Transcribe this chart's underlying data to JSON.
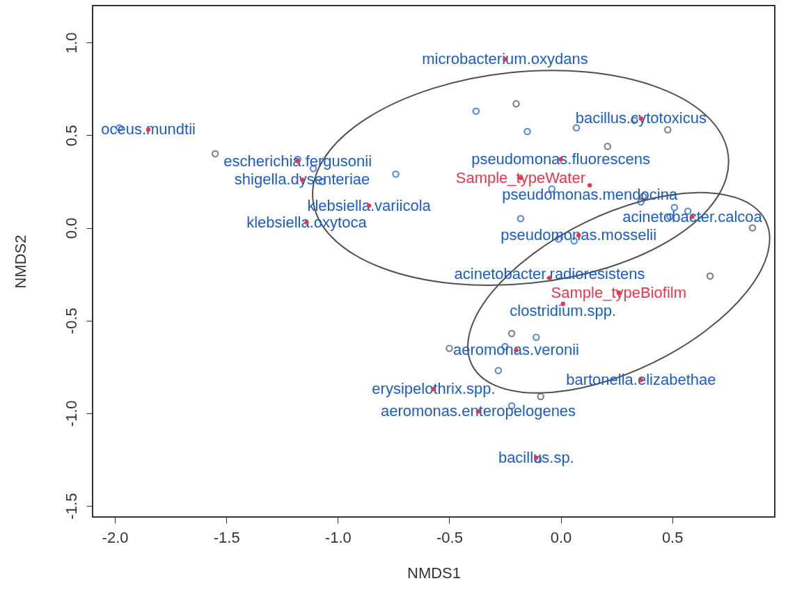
{
  "chart_data": {
    "type": "scatter",
    "xlabel": "NMDS1",
    "ylabel": "NMDS2",
    "xlim": [
      -2.1,
      0.96
    ],
    "ylim": [
      -1.56,
      1.2
    ],
    "xticks": [
      {
        "value": -2,
        "label": "-2.0"
      },
      -1.5,
      {
        "value": -1,
        "label": "-1.0"
      },
      -0.5,
      {
        "value": 0,
        "label": "0.0"
      },
      0.5
    ],
    "yticks": [
      {
        "value": -1.5,
        "label": "-1.5"
      },
      {
        "value": -1,
        "label": "-1.0"
      },
      -0.5,
      {
        "value": 0,
        "label": "0.0"
      },
      0.5,
      {
        "value": 1,
        "label": "1.0"
      }
    ],
    "grid": false,
    "legend": false,
    "series": [
      {
        "type": "scatter",
        "marker": "circle",
        "color": "#1a5cc8",
        "x": [
          -1.98,
          -1.18,
          -1.11,
          -1.07,
          -0.74,
          -0.38,
          -0.15,
          0.07,
          0.33,
          -0.04,
          0.36,
          0.51,
          0.57,
          0.49,
          -0.18,
          -0.01,
          0.06,
          -0.11,
          -0.25,
          -0.28,
          -0.22,
          -0.1
        ],
        "values": [
          0.54,
          0.37,
          0.32,
          0.25,
          0.29,
          0.63,
          0.52,
          0.54,
          0.58,
          0.21,
          0.14,
          0.11,
          0.09,
          0.06,
          0.05,
          -0.06,
          -0.07,
          -0.59,
          -0.64,
          -0.77,
          -0.96,
          -1.25
        ]
      },
      {
        "type": "scatter",
        "marker": "circle",
        "color": "#505050",
        "x": [
          -1.55,
          -0.2,
          0.48,
          0.21,
          0.37,
          0.86,
          0.67,
          -0.22,
          -0.5,
          -0.09
        ],
        "values": [
          0.4,
          0.67,
          0.53,
          0.44,
          0.17,
          0.0,
          -0.26,
          -0.57,
          -0.65,
          -0.91
        ]
      },
      {
        "color": "#e8364e",
        "x": [
          -1.85,
          -0.25,
          0.36,
          -1.18,
          0.0,
          -1.16,
          0.13,
          -0.86,
          -1.14,
          0.59,
          0.08,
          -0.05,
          0.01,
          -0.2,
          0.36,
          -0.57,
          -0.37,
          -0.11
        ],
        "values": [
          0.53,
          0.91,
          0.59,
          0.36,
          0.37,
          0.26,
          0.23,
          0.12,
          0.03,
          0.06,
          -0.04,
          -0.27,
          -0.41,
          -0.66,
          -0.82,
          -0.87,
          -0.99,
          -1.24
        ]
      },
      {
        "name": "Sample_typeWater",
        "color": "#e8364e",
        "x": [
          -0.18
        ],
        "values": [
          0.27
        ]
      },
      {
        "name": "Sample_typeBiofilm",
        "color": "#e8364e",
        "x": [
          0.26
        ],
        "values": [
          -0.35
        ]
      }
    ],
    "annotations": [
      {
        "text": "oceus.mundtii",
        "x": -1.85,
        "y": 0.53
      },
      {
        "text": "microbacterium.oxydans",
        "x": -0.25,
        "y": 0.91
      },
      {
        "text": "bacillus.cytotoxicus",
        "x": 0.36,
        "y": 0.59
      },
      {
        "text": "escherichia.fergusonii",
        "x": -1.18,
        "y": 0.36
      },
      {
        "text": "pseudomonas.fluorescens",
        "x": 0.0,
        "y": 0.37
      },
      {
        "text": "shigella.dysenteriae",
        "x": -1.16,
        "y": 0.26
      },
      {
        "text": "pseudomonas.mendocina",
        "x": 0.13,
        "y": 0.23
      },
      {
        "text": "klebsiella.variicola",
        "x": -0.86,
        "y": 0.12
      },
      {
        "text": "klebsiella.oxytoca",
        "x": -1.14,
        "y": 0.03
      },
      {
        "text": "acinetobacter.calcoa",
        "x": 0.59,
        "y": 0.06
      },
      {
        "text": "pseudomonas.mosselii",
        "x": 0.08,
        "y": -0.04
      },
      {
        "text": "acinetobacter.radioresistens",
        "x": -0.05,
        "y": -0.27
      },
      {
        "text": "clostridium.spp.",
        "x": 0.01,
        "y": -0.41
      },
      {
        "text": "aeromonas.veronii",
        "x": -0.2,
        "y": -0.66
      },
      {
        "text": "bartonella.elizabethae",
        "x": 0.36,
        "y": -0.82
      },
      {
        "text": "erysipelothrix.spp.",
        "x": -0.57,
        "y": -0.87
      },
      {
        "text": "aeromonas.enteropelogenes",
        "x": -0.37,
        "y": -0.99
      },
      {
        "text": "bacillus.sp.",
        "x": -0.11,
        "y": -1.24
      }
    ]
  }
}
